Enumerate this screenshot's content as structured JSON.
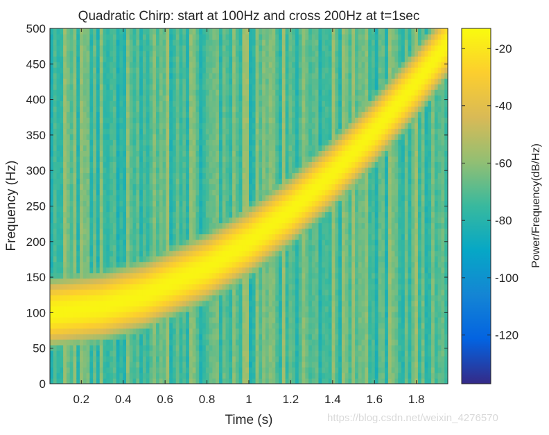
{
  "chart_data": {
    "type": "heatmap",
    "subtype": "spectrogram",
    "title": "Quadratic Chirp: start at 100Hz and cross 200Hz at t=1sec",
    "xlabel": "Time (s)",
    "ylabel": "Frequency (Hz)",
    "xlim": [
      0.05,
      1.95
    ],
    "ylim": [
      0,
      500
    ],
    "x_ticks": [
      0.2,
      0.4,
      0.6,
      0.8,
      1,
      1.2,
      1.4,
      1.6,
      1.8
    ],
    "x_tick_labels": [
      "0.2",
      "0.4",
      "0.6",
      "0.8",
      "1",
      "1.2",
      "1.4",
      "1.6",
      "1.8"
    ],
    "y_ticks": [
      0,
      50,
      100,
      150,
      200,
      250,
      300,
      350,
      400,
      450,
      500
    ],
    "y_tick_labels": [
      "0",
      "50",
      "100",
      "150",
      "200",
      "250",
      "300",
      "350",
      "400",
      "450",
      "500"
    ],
    "chirp": {
      "model": "quadratic",
      "f0_hz": 100,
      "t1_s": 1,
      "f1_hz": 200,
      "ridge_samples": [
        {
          "t": 0.05,
          "f": 100
        },
        {
          "t": 0.3,
          "f": 109
        },
        {
          "t": 0.5,
          "f": 125
        },
        {
          "t": 0.8,
          "f": 164
        },
        {
          "t": 1.0,
          "f": 200
        },
        {
          "t": 1.2,
          "f": 244
        },
        {
          "t": 1.4,
          "f": 296
        },
        {
          "t": 1.6,
          "f": 356
        },
        {
          "t": 1.8,
          "f": 424
        },
        {
          "t": 1.95,
          "f": 480
        }
      ],
      "peak_db": -15,
      "background_db": -70
    },
    "colorbar": {
      "label": "Power/Frequency(dB/Hz)",
      "range_db": [
        -137,
        -13
      ],
      "ticks": [
        -20,
        -40,
        -60,
        -80,
        -100,
        -120
      ],
      "tick_labels": [
        "-20",
        "-40",
        "-60",
        "-80",
        "-100",
        "-120"
      ],
      "colormap": "parula",
      "colormap_stops": [
        "#352a87",
        "#0363e1",
        "#1485d4",
        "#06a7c6",
        "#38b99e",
        "#92bf73",
        "#d9ba56",
        "#fcce2e",
        "#f9fb0e"
      ]
    }
  },
  "watermark": "https://blog.csdn.net/weixin_4276570"
}
